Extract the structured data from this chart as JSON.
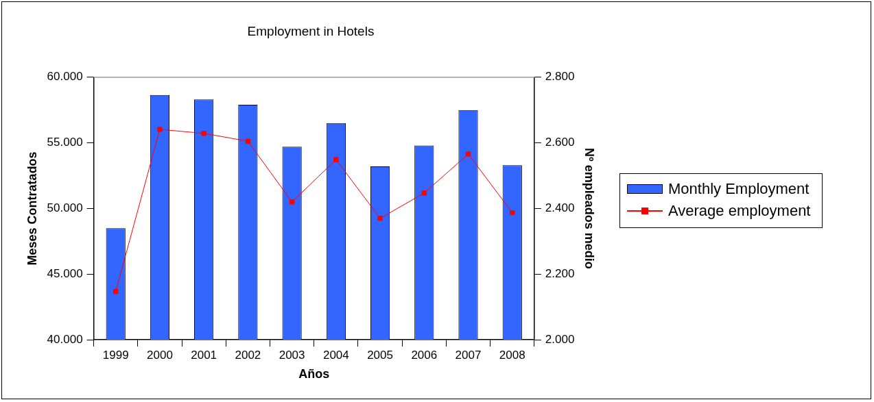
{
  "chart_data": {
    "type": "bar",
    "title": "Employment in Hotels",
    "xlabel": "Años",
    "ylabel": "Meses Contratados",
    "y2label": "Nº empleados medio",
    "categories": [
      "1999",
      "2000",
      "2001",
      "2002",
      "2003",
      "2004",
      "2005",
      "2006",
      "2007",
      "2008"
    ],
    "series": [
      {
        "name": "Monthly Employment",
        "color": "#3366ff",
        "values": [
          48500,
          58650,
          58300,
          57900,
          54700,
          56500,
          53200,
          54800,
          57500,
          53300
        ]
      },
      {
        "name": "Average employment",
        "type": "line",
        "axis": "y2",
        "color": "#ff0000",
        "marker": "square",
        "values": [
          2147,
          2641,
          2629,
          2605,
          2420,
          2549,
          2370,
          2447,
          2566,
          2387
        ]
      }
    ],
    "ylim": [
      40000,
      60000
    ],
    "yticks": [
      {
        "value": 40000,
        "label": "40.000"
      },
      {
        "value": 45000,
        "label": "45.000"
      },
      {
        "value": 50000,
        "label": "50.000"
      },
      {
        "value": 55000,
        "label": "55.000"
      },
      {
        "value": 60000,
        "label": "60.000"
      }
    ],
    "y2lim": [
      2000,
      2800
    ],
    "y2ticks": [
      {
        "value": 2000,
        "label": "2.000"
      },
      {
        "value": 2200,
        "label": "2.200"
      },
      {
        "value": 2400,
        "label": "2.400"
      },
      {
        "value": 2600,
        "label": "2.600"
      },
      {
        "value": 2800,
        "label": "2.800"
      }
    ],
    "grid": false,
    "legend": "right"
  }
}
